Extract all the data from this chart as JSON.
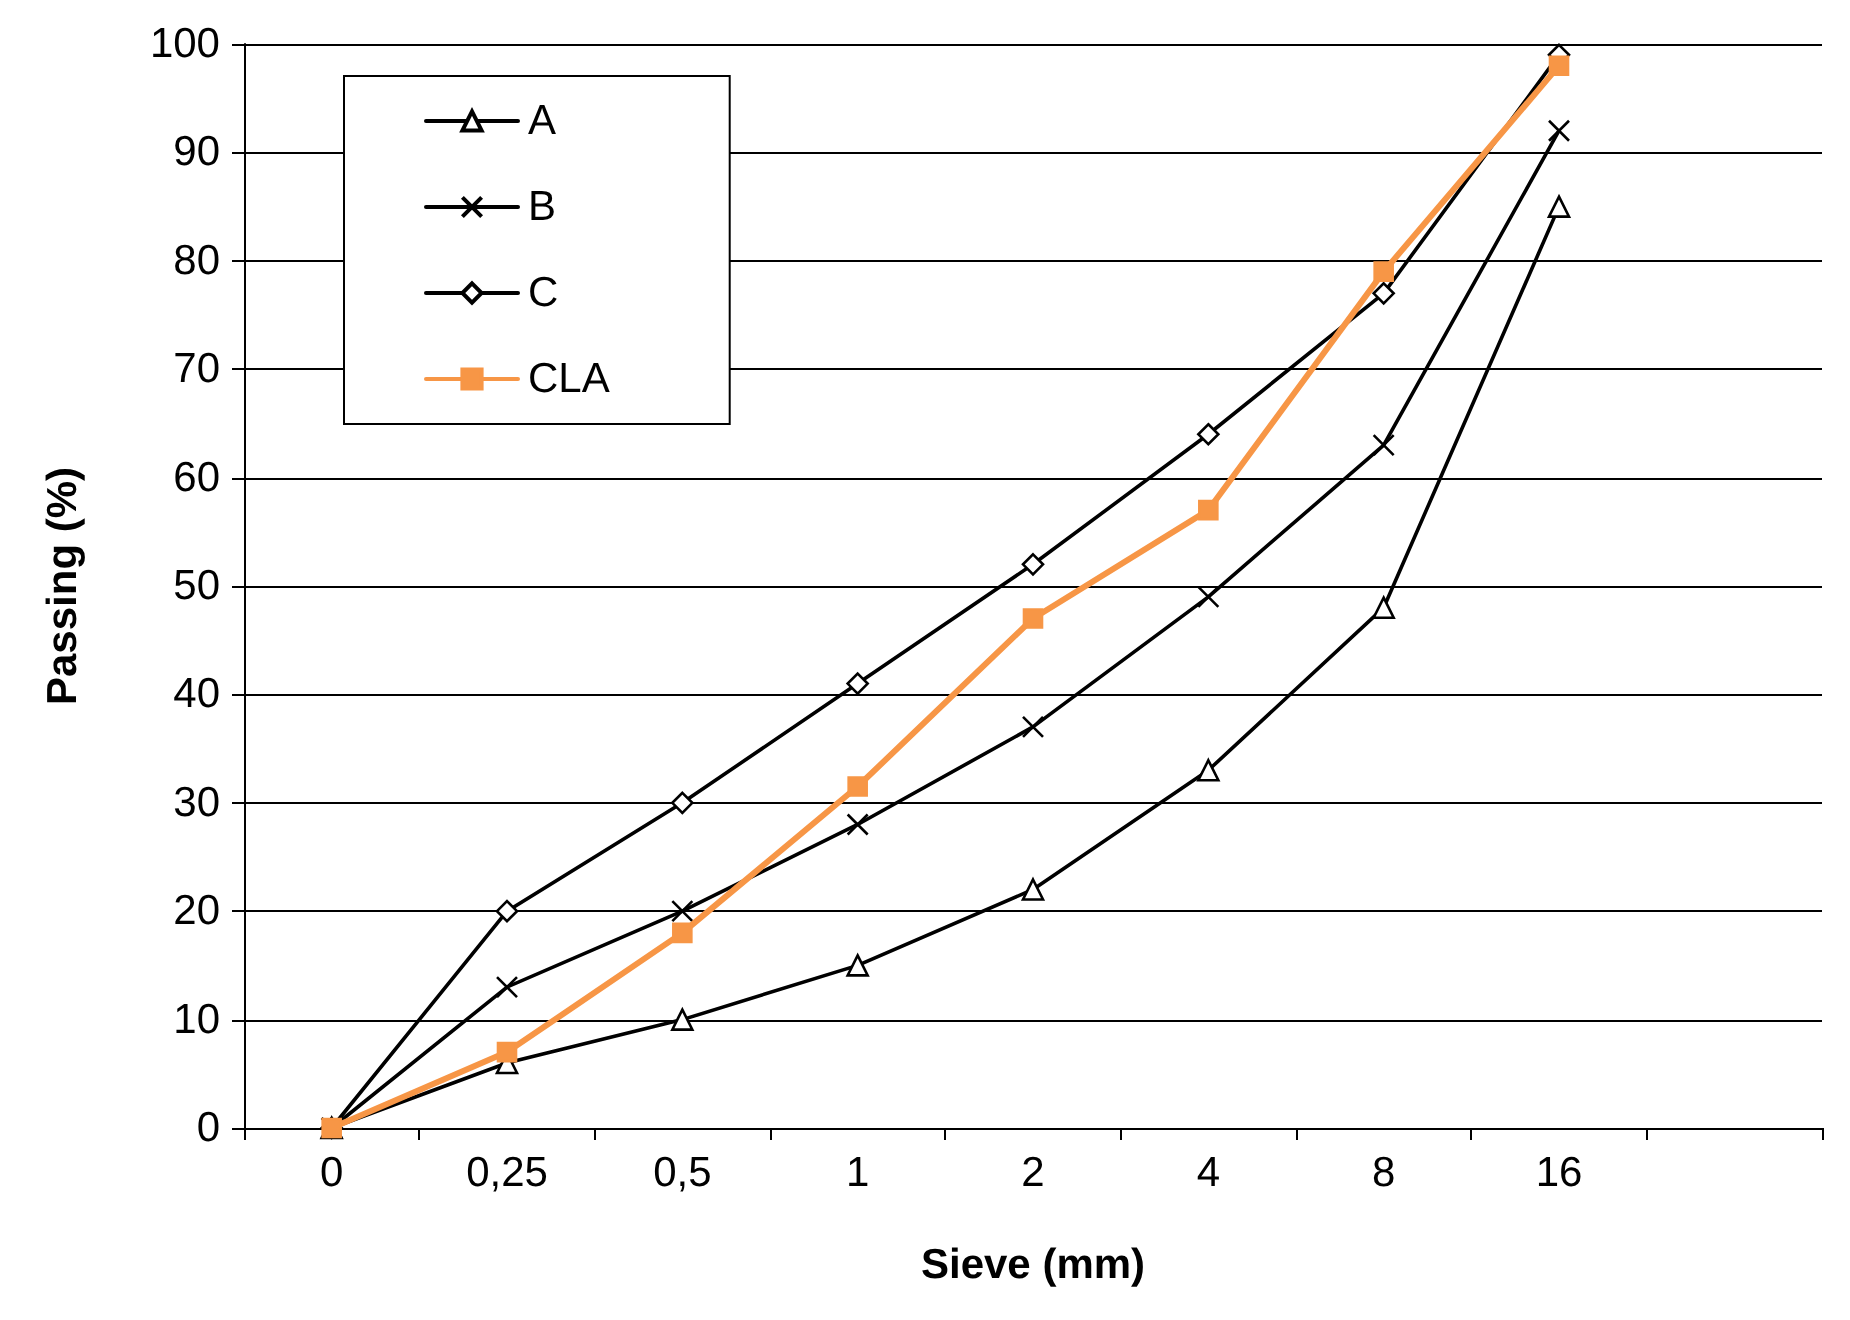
{
  "chart_data": {
    "type": "line",
    "xlabel": "Sieve (mm)",
    "ylabel": "Passing (%)",
    "categories": [
      "0",
      "0,25",
      "0,5",
      "1",
      "2",
      "4",
      "8",
      "16",
      null
    ],
    "series": [
      {
        "name": "A",
        "color": "#000000",
        "marker": "triangle",
        "values": [
          0,
          6,
          10,
          15,
          22,
          33,
          48,
          85,
          null
        ]
      },
      {
        "name": "B",
        "color": "#000000",
        "marker": "cross",
        "values": [
          0,
          13,
          20,
          28,
          37,
          49,
          63,
          92,
          null
        ]
      },
      {
        "name": "C",
        "color": "#000000",
        "marker": "diamond",
        "values": [
          0,
          20,
          30,
          41,
          52,
          64,
          77,
          99,
          null
        ]
      },
      {
        "name": "CLA",
        "color": "#f79646",
        "marker": "square",
        "values": [
          0,
          7,
          18,
          31.5,
          47,
          57,
          79,
          98,
          null
        ]
      }
    ],
    "ylim": [
      0,
      100
    ],
    "yticks": [
      0,
      10,
      20,
      30,
      40,
      50,
      60,
      70,
      80,
      90,
      100
    ],
    "grid": "y",
    "legend": "top left",
    "line_style": "solid"
  }
}
